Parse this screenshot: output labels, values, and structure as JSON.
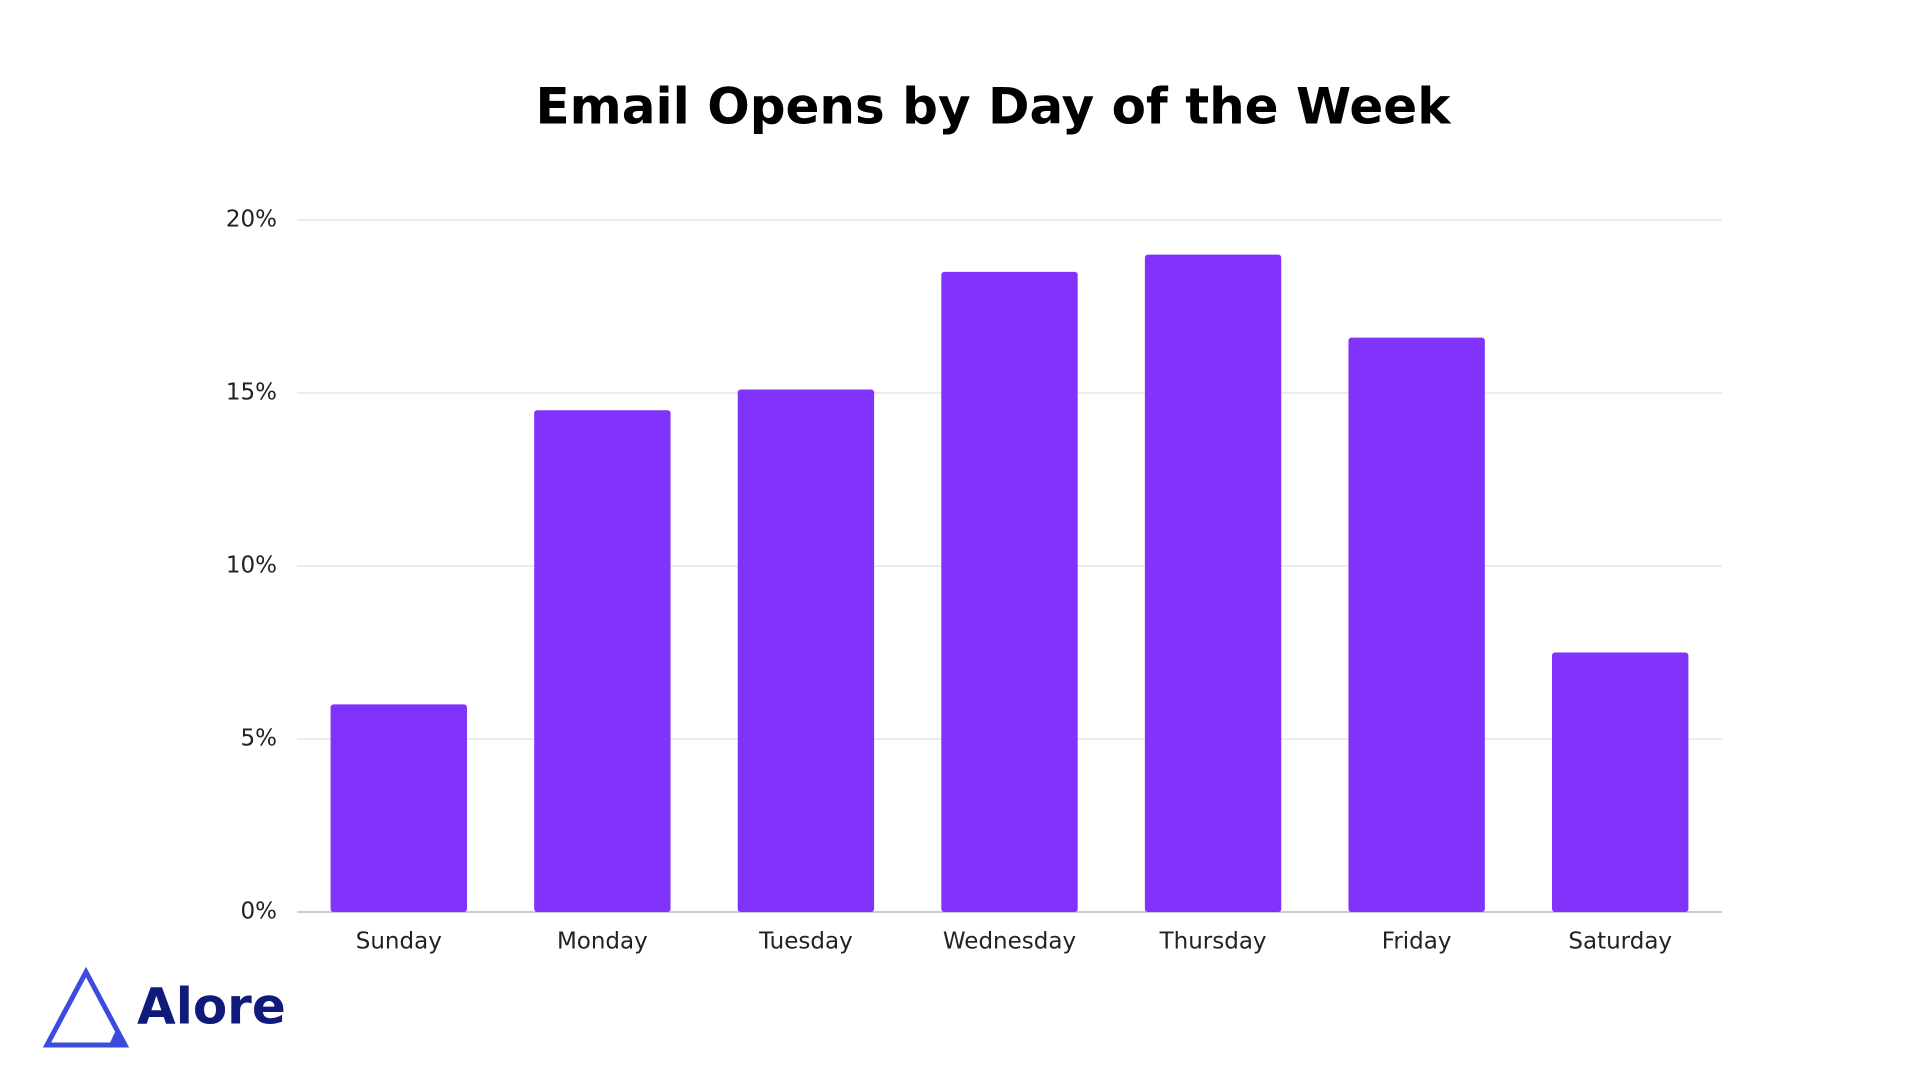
{
  "chart_data": {
    "type": "bar",
    "title": "Email Opens by Day of the Week",
    "categories": [
      "Sunday",
      "Monday",
      "Tuesday",
      "Wednesday",
      "Thursday",
      "Friday",
      "Saturday"
    ],
    "values": [
      6.0,
      14.5,
      15.1,
      18.5,
      19.0,
      16.6,
      7.5
    ],
    "color": "#8133fb",
    "ylim": [
      0,
      20
    ],
    "yticks": [
      {
        "value": 0,
        "label": "0%"
      },
      {
        "value": 5,
        "label": "5%"
      },
      {
        "value": 10,
        "label": "10%"
      },
      {
        "value": 15,
        "label": "15%"
      },
      {
        "value": 20,
        "label": "20%"
      }
    ],
    "grid": true
  },
  "brand": "Alore"
}
